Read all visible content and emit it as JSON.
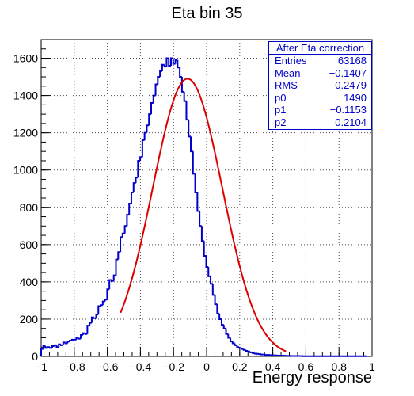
{
  "chart_data": {
    "type": "histogram",
    "title": "Eta bin 35",
    "xlabel": "Energy response",
    "ylabel": "",
    "xlim": [
      -1,
      1
    ],
    "ylim": [
      0,
      1700
    ],
    "x_ticks": [
      "−1",
      "−0.8",
      "−0.6",
      "−0.4",
      "−0.2",
      "0",
      "0.2",
      "0.4",
      "0.6",
      "0.8",
      "1"
    ],
    "y_ticks": [
      "0",
      "200",
      "400",
      "600",
      "800",
      "1000",
      "1200",
      "1400",
      "1600"
    ],
    "grid": true,
    "histogram": {
      "color": "#0000cc",
      "bin_width": 0.0133,
      "x_start": -1,
      "counts": [
        40,
        55,
        45,
        50,
        45,
        55,
        60,
        50,
        65,
        60,
        75,
        70,
        80,
        85,
        90,
        90,
        100,
        95,
        115,
        125,
        120,
        165,
        180,
        210,
        205,
        225,
        270,
        275,
        295,
        305,
        360,
        410,
        405,
        435,
        520,
        560,
        640,
        660,
        700,
        760,
        820,
        880,
        930,
        960,
        1050,
        1070,
        1160,
        1200,
        1240,
        1300,
        1360,
        1400,
        1460,
        1500,
        1530,
        1565,
        1555,
        1600,
        1560,
        1600,
        1570,
        1590,
        1550,
        1500,
        1420,
        1370,
        1270,
        1180,
        1100,
        980,
        880,
        780,
        700,
        620,
        540,
        480,
        430,
        390,
        330,
        280,
        230,
        200,
        170,
        150,
        120,
        100,
        80,
        70,
        60,
        50,
        45,
        40,
        35,
        30,
        26,
        22,
        18,
        15,
        14,
        12,
        10,
        10,
        8,
        8,
        7,
        6,
        6,
        5,
        4,
        4,
        4,
        3,
        3,
        3,
        2,
        2,
        2,
        2,
        2,
        1,
        1,
        1,
        1,
        1,
        1,
        1,
        1,
        1,
        1,
        1,
        1,
        1,
        1,
        1,
        1,
        1,
        1,
        1,
        1,
        1,
        1,
        1,
        1,
        1,
        1,
        1,
        1,
        1
      ]
    },
    "fit": {
      "color": "#dd0000",
      "function": "gaus",
      "x_range": [
        -0.52,
        0.48
      ],
      "p0": 1490,
      "p1": -0.1153,
      "p2": 0.2104
    }
  },
  "stats": {
    "header": "After Eta correction",
    "rows": [
      {
        "label": "Entries",
        "value": "63168"
      },
      {
        "label": "Mean",
        "value": "−0.1407"
      },
      {
        "label": "RMS",
        "value": "0.2479"
      },
      {
        "label": "p0",
        "value": "1490"
      },
      {
        "label": "p1",
        "value": "−0.1153"
      },
      {
        "label": "p2",
        "value": "0.2104"
      }
    ]
  }
}
